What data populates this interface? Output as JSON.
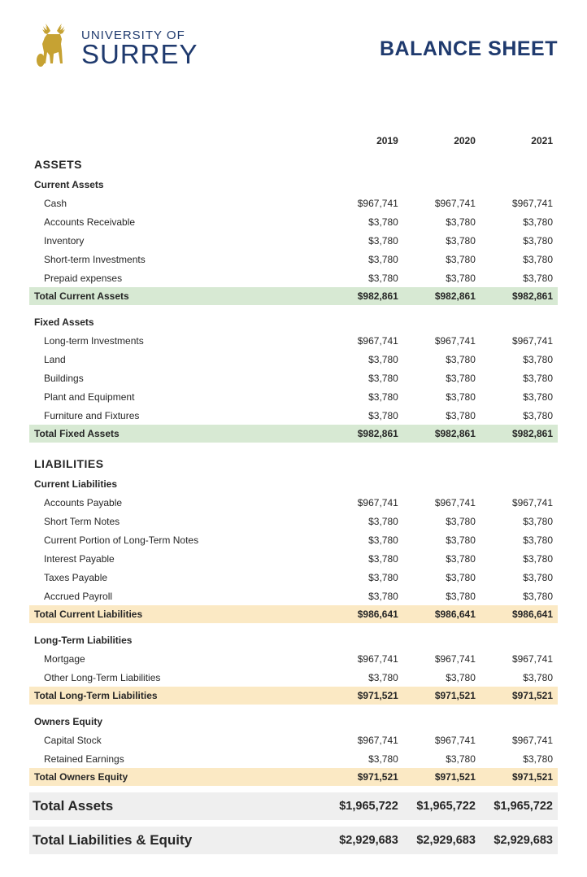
{
  "header": {
    "org_line1": "UNIVERSITY OF",
    "org_line2": "SURREY",
    "title": "BALANCE SHEET",
    "brand_color": "#1f3a6e",
    "stag_color": "#c6a233"
  },
  "years": [
    "2019",
    "2020",
    "2021"
  ],
  "colors": {
    "total_green_bg": "#d7e9d3",
    "total_yellow_bg": "#fbe9c4",
    "grand_bg": "#efefef",
    "text": "#262626"
  },
  "sections": {
    "assets": {
      "heading": "ASSETS",
      "groups": [
        {
          "name": "Current Assets",
          "items": [
            {
              "label": "Cash",
              "values": [
                "$967,741",
                "$967,741",
                "$967,741"
              ]
            },
            {
              "label": "Accounts Receivable",
              "values": [
                "$3,780",
                "$3,780",
                "$3,780"
              ]
            },
            {
              "label": "Inventory",
              "values": [
                "$3,780",
                "$3,780",
                "$3,780"
              ]
            },
            {
              "label": "Short-term Investments",
              "values": [
                "$3,780",
                "$3,780",
                "$3,780"
              ]
            },
            {
              "label": "Prepaid expenses",
              "values": [
                "$3,780",
                "$3,780",
                "$3,780"
              ]
            }
          ],
          "total": {
            "label": "Total Current Assets",
            "values": [
              "$982,861",
              "$982,861",
              "$982,861"
            ],
            "style": "green"
          }
        },
        {
          "name": "Fixed Assets",
          "items": [
            {
              "label": "Long-term Investments",
              "values": [
                "$967,741",
                "$967,741",
                "$967,741"
              ]
            },
            {
              "label": "Land",
              "values": [
                "$3,780",
                "$3,780",
                "$3,780"
              ]
            },
            {
              "label": "Buildings",
              "values": [
                "$3,780",
                "$3,780",
                "$3,780"
              ]
            },
            {
              "label": "Plant and Equipment",
              "values": [
                "$3,780",
                "$3,780",
                "$3,780"
              ]
            },
            {
              "label": "Furniture and Fixtures",
              "values": [
                "$3,780",
                "$3,780",
                "$3,780"
              ]
            }
          ],
          "total": {
            "label": "Total Fixed Assets",
            "values": [
              "$982,861",
              "$982,861",
              "$982,861"
            ],
            "style": "green"
          }
        }
      ]
    },
    "liabilities": {
      "heading": "LIABILITIES",
      "groups": [
        {
          "name": "Current Liabilities",
          "items": [
            {
              "label": "Accounts Payable",
              "values": [
                "$967,741",
                "$967,741",
                "$967,741"
              ]
            },
            {
              "label": "Short Term Notes",
              "values": [
                "$3,780",
                "$3,780",
                "$3,780"
              ]
            },
            {
              "label": "Current Portion of Long-Term Notes",
              "values": [
                "$3,780",
                "$3,780",
                "$3,780"
              ]
            },
            {
              "label": "Interest Payable",
              "values": [
                "$3,780",
                "$3,780",
                "$3,780"
              ]
            },
            {
              "label": "Taxes Payable",
              "values": [
                "$3,780",
                "$3,780",
                "$3,780"
              ]
            },
            {
              "label": "Accrued Payroll",
              "values": [
                "$3,780",
                "$3,780",
                "$3,780"
              ]
            }
          ],
          "total": {
            "label": "Total Current Liabilities",
            "values": [
              "$986,641",
              "$986,641",
              "$986,641"
            ],
            "style": "yellow"
          }
        },
        {
          "name": "Long-Term Liabilities",
          "items": [
            {
              "label": "Mortgage",
              "values": [
                "$967,741",
                "$967,741",
                "$967,741"
              ]
            },
            {
              "label": "Other Long-Term Liabilities",
              "values": [
                "$3,780",
                "$3,780",
                "$3,780"
              ]
            }
          ],
          "total": {
            "label": "Total Long-Term Liabilities",
            "values": [
              "$971,521",
              "$971,521",
              "$971,521"
            ],
            "style": "yellow"
          }
        },
        {
          "name": "Owners Equity",
          "items": [
            {
              "label": "Capital Stock",
              "values": [
                "$967,741",
                "$967,741",
                "$967,741"
              ]
            },
            {
              "label": "Retained Earnings",
              "values": [
                "$3,780",
                "$3,780",
                "$3,780"
              ]
            }
          ],
          "total": {
            "label": "Total Owners Equity",
            "values": [
              "$971,521",
              "$971,521",
              "$971,521"
            ],
            "style": "yellow"
          }
        }
      ]
    }
  },
  "grand_totals": [
    {
      "label": "Total Assets",
      "values": [
        "$1,965,722",
        "$1,965,722",
        "$1,965,722"
      ]
    },
    {
      "label": "Total Liabilities & Equity",
      "values": [
        "$2,929,683",
        "$2,929,683",
        "$2,929,683"
      ]
    }
  ]
}
